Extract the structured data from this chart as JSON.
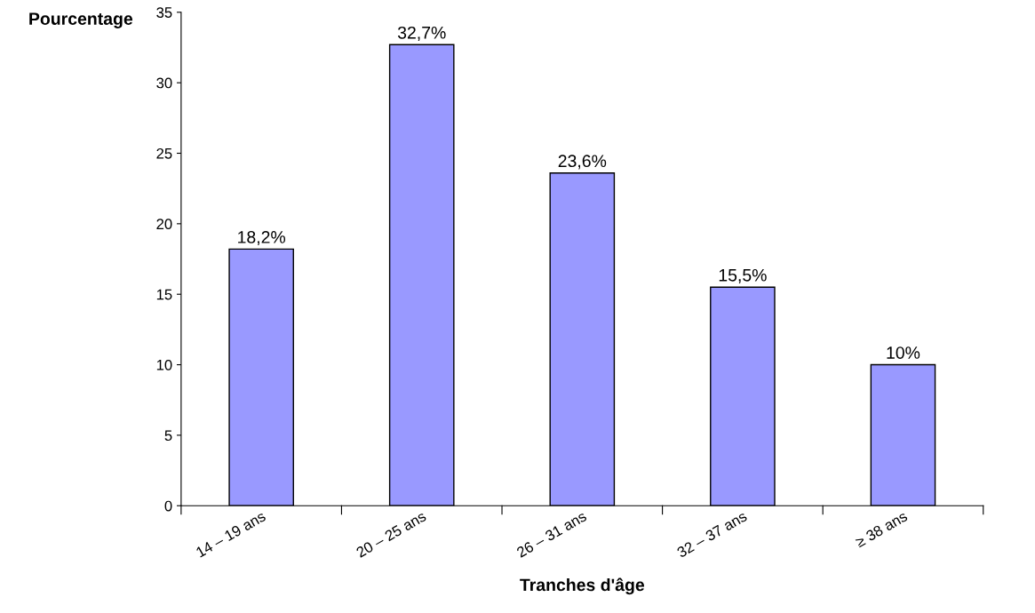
{
  "chart_data": {
    "type": "bar",
    "xlabel": "Tranches d'âge",
    "ylabel": "Pourcentage",
    "categories": [
      "14 – 19 ans",
      "20 – 25 ans",
      "26 – 31 ans",
      "32 – 37 ans",
      "≥ 38 ans"
    ],
    "values": [
      18.2,
      32.7,
      23.6,
      15.5,
      10
    ],
    "value_labels": [
      "18,2%",
      "32,7%",
      "23,6%",
      "15,5%",
      "10%"
    ],
    "color": "#9999ff",
    "ylim": [
      0,
      35
    ],
    "yticks": [
      0,
      5,
      10,
      15,
      20,
      25,
      30,
      35
    ],
    "grid": false,
    "legend": false
  }
}
